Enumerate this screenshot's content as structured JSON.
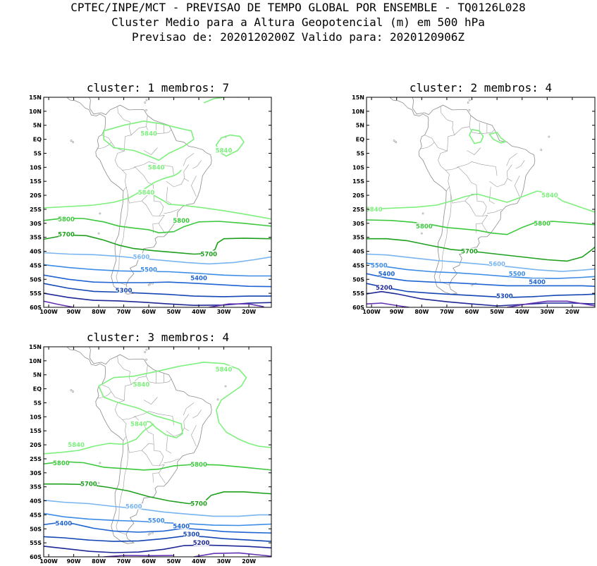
{
  "header": {
    "line1": "CPTEC/INPE/MCT - PREVISAO DE TEMPO GLOBAL POR ENSEMBLE - TQ0126L028",
    "line2": "Cluster Medio para a Altura Geopotencial (m) em 500 hPa",
    "line3": "Previsao de: 2020120200Z   Valido para: 2020120906Z"
  },
  "axes": {
    "lat_labels": [
      "15N",
      "10N",
      "5N",
      "EQ",
      "5S",
      "10S",
      "15S",
      "20S",
      "25S",
      "30S",
      "35S",
      "40S",
      "45S",
      "50S",
      "55S",
      "60S"
    ],
    "lon_labels": [
      "100W",
      "90W",
      "80W",
      "70W",
      "60W",
      "50W",
      "40W",
      "30W",
      "20W"
    ]
  },
  "contour_colors": {
    "5840": "#7df07d",
    "5800": "#3cc83c",
    "5700": "#1ea01e",
    "5600": "#78b4f0",
    "5500": "#3c8ce6",
    "5400": "#1e64d2",
    "5300": "#1446b4",
    "5200": "#1e2896",
    "5100": "#6432b4"
  },
  "panels": [
    {
      "title": "cluster: 1   membros: 7",
      "labels": [
        {
          "text": "5840",
          "lon": -60,
          "lat": 2,
          "level": "5840"
        },
        {
          "text": "5840",
          "lon": -30,
          "lat": -4,
          "level": "5840"
        },
        {
          "text": "5840",
          "lon": -57,
          "lat": -10,
          "level": "5840"
        },
        {
          "text": "5840",
          "lon": -61,
          "lat": -19,
          "level": "5840"
        },
        {
          "text": "5800",
          "lon": -93,
          "lat": -28.5,
          "level": "5800"
        },
        {
          "text": "5800",
          "lon": -47,
          "lat": -29,
          "level": "5800"
        },
        {
          "text": "5700",
          "lon": -93,
          "lat": -34,
          "level": "5700"
        },
        {
          "text": "5700",
          "lon": -36,
          "lat": -41,
          "level": "5700"
        },
        {
          "text": "5600",
          "lon": -63,
          "lat": -42,
          "level": "5600"
        },
        {
          "text": "5500",
          "lon": -60,
          "lat": -46.5,
          "level": "5500"
        },
        {
          "text": "5400",
          "lon": -40,
          "lat": -49.5,
          "level": "5400"
        },
        {
          "text": "5300",
          "lon": -70,
          "lat": -54,
          "level": "5300"
        }
      ]
    },
    {
      "title": "cluster: 2   membros: 4",
      "labels": [
        {
          "text": "5840",
          "lon": -29,
          "lat": -20,
          "level": "5840"
        },
        {
          "text": "5840",
          "lon": -99,
          "lat": -25,
          "level": "5840"
        },
        {
          "text": "5800",
          "lon": -79,
          "lat": -31,
          "level": "5800"
        },
        {
          "text": "5800",
          "lon": -32,
          "lat": -30,
          "level": "5800"
        },
        {
          "text": "5700",
          "lon": -61,
          "lat": -40,
          "level": "5700"
        },
        {
          "text": "5600",
          "lon": -50,
          "lat": -44.5,
          "level": "5600"
        },
        {
          "text": "5500",
          "lon": -97,
          "lat": -45,
          "level": "5500"
        },
        {
          "text": "5400",
          "lon": -94,
          "lat": -48,
          "level": "5400"
        },
        {
          "text": "5500",
          "lon": -42,
          "lat": -48,
          "level": "5500"
        },
        {
          "text": "5400",
          "lon": -34,
          "lat": -51,
          "level": "5400"
        },
        {
          "text": "5200",
          "lon": -95,
          "lat": -53,
          "level": "5200"
        },
        {
          "text": "5300",
          "lon": -47,
          "lat": -56,
          "level": "5300"
        }
      ]
    },
    {
      "title": "cluster: 3   membros: 4",
      "labels": [
        {
          "text": "5840",
          "lon": -30,
          "lat": 7,
          "level": "5840"
        },
        {
          "text": "5840",
          "lon": -63,
          "lat": 1.5,
          "level": "5840"
        },
        {
          "text": "5840",
          "lon": -64,
          "lat": -12.5,
          "level": "5840"
        },
        {
          "text": "5840",
          "lon": -89,
          "lat": -20,
          "level": "5840"
        },
        {
          "text": "5800",
          "lon": -95,
          "lat": -26.5,
          "level": "5800"
        },
        {
          "text": "5800",
          "lon": -40,
          "lat": -27,
          "level": "5800"
        },
        {
          "text": "5700",
          "lon": -84,
          "lat": -34,
          "level": "5700"
        },
        {
          "text": "5700",
          "lon": -40,
          "lat": -41,
          "level": "5700"
        },
        {
          "text": "5600",
          "lon": -66,
          "lat": -42,
          "level": "5600"
        },
        {
          "text": "5500",
          "lon": -57,
          "lat": -47,
          "level": "5500"
        },
        {
          "text": "5400",
          "lon": -94,
          "lat": -48,
          "level": "5400"
        },
        {
          "text": "5400",
          "lon": -47,
          "lat": -49,
          "level": "5400"
        },
        {
          "text": "5300",
          "lon": -43,
          "lat": -52,
          "level": "5300"
        },
        {
          "text": "5200",
          "lon": -39,
          "lat": -55,
          "level": "5200"
        }
      ]
    }
  ]
}
